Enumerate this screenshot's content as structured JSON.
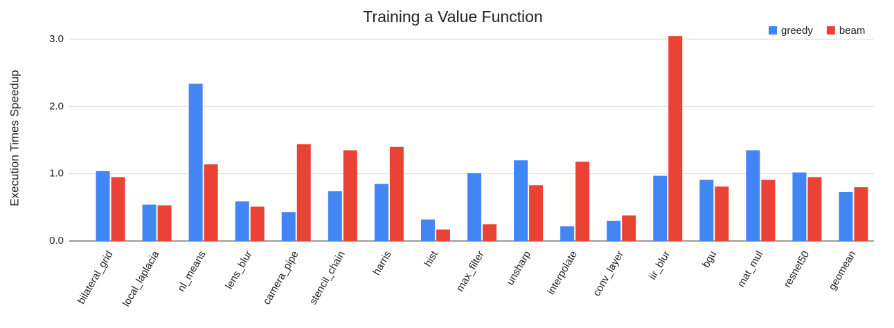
{
  "chart_data": {
    "type": "bar",
    "title": "Training a Value Function",
    "y_label": "Execution Times Speedup",
    "categories": [
      "bilateral_grid",
      "local_laplacia",
      "nl_means",
      "lens_blur",
      "camera_pipe",
      "stencil_chain",
      "harris",
      "hist",
      "max_filter",
      "unsharp",
      "interpolate",
      "conv_layer",
      "iir_blur",
      "bgu",
      "mat_mul",
      "resnet50",
      "geomean"
    ],
    "series": [
      {
        "name": "greedy",
        "color": "#4285f4",
        "values": [
          1.04,
          0.54,
          2.34,
          0.59,
          0.43,
          0.74,
          0.85,
          0.32,
          1.01,
          1.2,
          0.22,
          0.3,
          0.97,
          0.91,
          1.35,
          1.02,
          0.73
        ]
      },
      {
        "name": "beam",
        "color": "#ea4335",
        "values": [
          0.95,
          0.53,
          1.14,
          0.51,
          1.44,
          1.35,
          1.4,
          0.17,
          0.25,
          0.83,
          1.18,
          0.38,
          3.05,
          0.81,
          0.91,
          0.95,
          0.8
        ]
      }
    ],
    "ylim": [
      0,
      3.1
    ],
    "yticks": [
      {
        "value": 0,
        "label": "0.0"
      },
      {
        "value": 1,
        "label": "1.0"
      },
      {
        "value": 2,
        "label": "2.0"
      },
      {
        "value": 3,
        "label": "3.0"
      }
    ],
    "grid": true,
    "legend": "top-right"
  }
}
